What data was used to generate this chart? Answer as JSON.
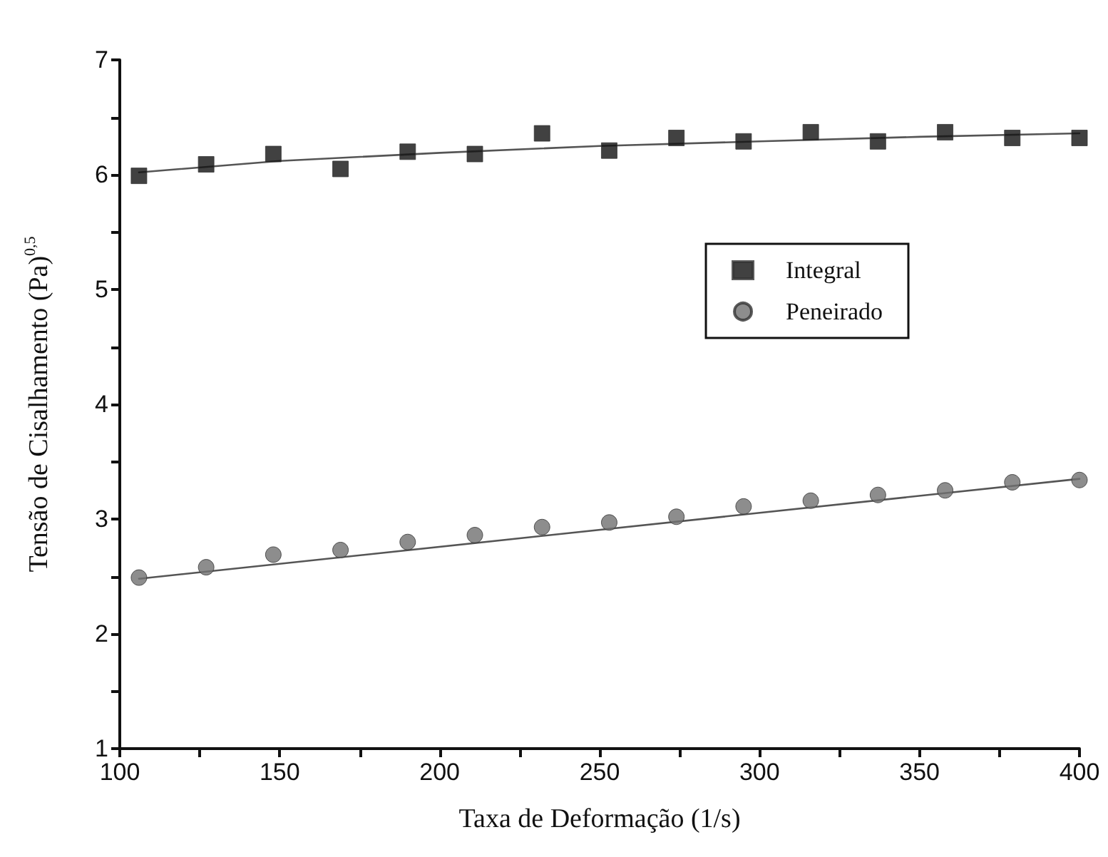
{
  "chart_data": {
    "type": "scatter",
    "xlabel": "Taxa de Deformação (1/s)",
    "ylabel": "Tensão de Cisalhamento (Pa)$^{0,5}$",
    "xlim": [
      100,
      400
    ],
    "xticks": [
      100,
      {
        "value": 125,
        "label": null
      },
      150,
      {
        "value": 175,
        "label": null
      },
      200,
      {
        "value": 225,
        "label": null
      },
      250,
      {
        "value": 275,
        "label": null
      },
      300,
      {
        "value": 325,
        "label": null
      },
      350,
      {
        "value": 375,
        "label": null
      },
      400
    ],
    "ylim": [
      1,
      7
    ],
    "yticks": [
      1,
      {
        "value": 1.5,
        "label": null
      },
      2,
      {
        "value": 2.5,
        "label": null
      },
      3,
      {
        "value": 3.5,
        "label": null
      },
      4,
      {
        "value": 4.5,
        "label": null
      },
      5,
      {
        "value": 5.5,
        "label": null
      },
      6,
      {
        "value": 6.5,
        "label": null
      },
      7
    ],
    "x": [
      106,
      127,
      148,
      169,
      190,
      211,
      232,
      253,
      274,
      295,
      316,
      337,
      358,
      379,
      400
    ],
    "series": [
      {
        "name": "Integral",
        "color": "#111111",
        "marker": "square",
        "values": [
          5.99,
          6.09,
          6.18,
          6.05,
          6.2,
          6.18,
          6.36,
          6.21,
          6.32,
          6.29,
          6.37,
          6.29,
          6.37,
          6.32,
          6.32
        ]
      },
      {
        "name": "Peneirado",
        "color": "#707070",
        "marker": "circle",
        "values": [
          2.49,
          2.58,
          2.69,
          2.73,
          2.8,
          2.86,
          2.93,
          2.97,
          3.02,
          3.11,
          3.16,
          3.21,
          3.25,
          3.32,
          3.34
        ]
      },
      {
        "type": "line",
        "color": "#555555",
        "marker": "none",
        "line_style": "solid",
        "x": [
          106,
          150,
          200,
          250,
          300,
          350,
          400
        ],
        "values": [
          6.02,
          6.12,
          6.19,
          6.25,
          6.29,
          6.33,
          6.36
        ]
      },
      {
        "type": "line",
        "color": "#555555",
        "marker": "none",
        "line_style": "solid",
        "x": [
          106,
          400
        ],
        "values": [
          2.48,
          3.35
        ]
      }
    ],
    "legend": "right",
    "grid": false
  }
}
